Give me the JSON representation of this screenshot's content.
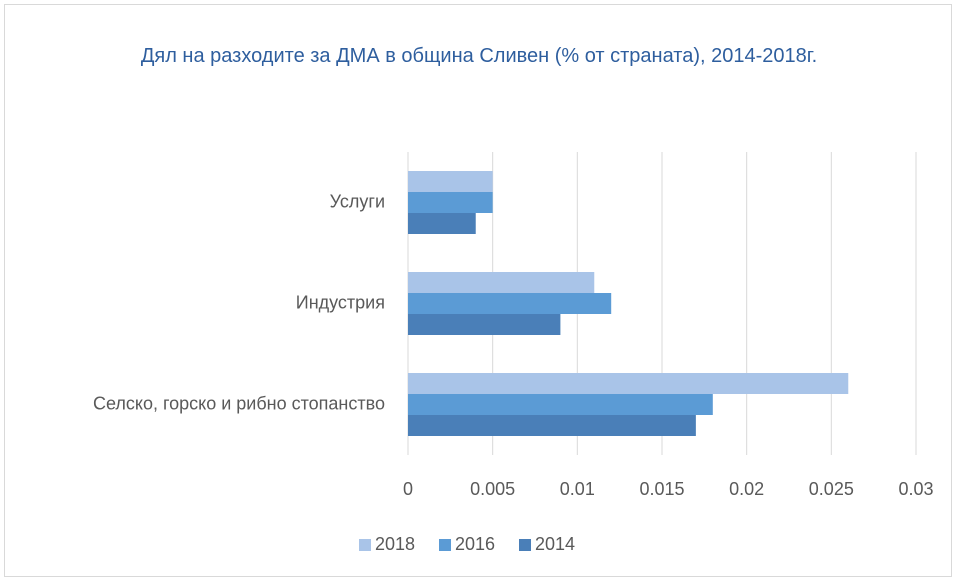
{
  "chart_data": {
    "type": "bar",
    "orientation": "horizontal",
    "title": "Дял на разходите за ДМА в община Сливен (% от страната), 2014-2018г.",
    "categories": [
      "Услуги",
      "Индустрия",
      "Селско, горско и рибно стопанство"
    ],
    "series": [
      {
        "name": "2018",
        "color": "#a9c4e8",
        "values": [
          0.005,
          0.011,
          0.026
        ]
      },
      {
        "name": "2016",
        "color": "#5b9bd5",
        "values": [
          0.005,
          0.012,
          0.018
        ]
      },
      {
        "name": "2014",
        "color": "#4a7fb8",
        "values": [
          0.004,
          0.009,
          0.017
        ]
      }
    ],
    "xlim": [
      0,
      0.03
    ],
    "xticks": [
      0,
      0.005,
      0.01,
      0.015,
      0.02,
      0.025,
      0.03
    ],
    "grid": true,
    "legend": "bottom"
  }
}
